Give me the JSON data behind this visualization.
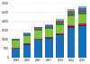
{
  "years": [
    "1990",
    "2000",
    "2005",
    "2007",
    "2010",
    "2014",
    "2016"
  ],
  "segments": {
    "blue": [
      490,
      710,
      970,
      1060,
      1240,
      1650,
      1730
    ],
    "dark_navy": [
      10,
      14,
      18,
      20,
      24,
      32,
      35
    ],
    "dark_red": [
      12,
      16,
      20,
      22,
      28,
      36,
      40
    ],
    "red": [
      18,
      24,
      30,
      33,
      40,
      52,
      58
    ],
    "black": [
      8,
      11,
      14,
      15,
      18,
      24,
      26
    ],
    "bright_green": [
      380,
      415,
      425,
      435,
      445,
      465,
      475
    ],
    "olive_green": [
      55,
      80,
      105,
      115,
      140,
      185,
      200
    ],
    "purple": [
      45,
      60,
      80,
      90,
      110,
      145,
      160
    ],
    "orange": [
      8,
      11,
      14,
      16,
      19,
      25,
      28
    ],
    "lt_blue_top": [
      18,
      25,
      32,
      36,
      44,
      58,
      64
    ]
  },
  "colors": [
    "#1a6eb5",
    "#1a3a6b",
    "#8b1a1a",
    "#cc2222",
    "#111111",
    "#7dc142",
    "#3a7a3a",
    "#7b4f9e",
    "#e8a020",
    "#6ab0e0"
  ],
  "ylim": [
    0,
    3000
  ],
  "yticks": [
    0,
    500,
    1000,
    1500,
    2000,
    2500,
    3000
  ],
  "background": "#ffffff",
  "grid_color": "#cccccc"
}
